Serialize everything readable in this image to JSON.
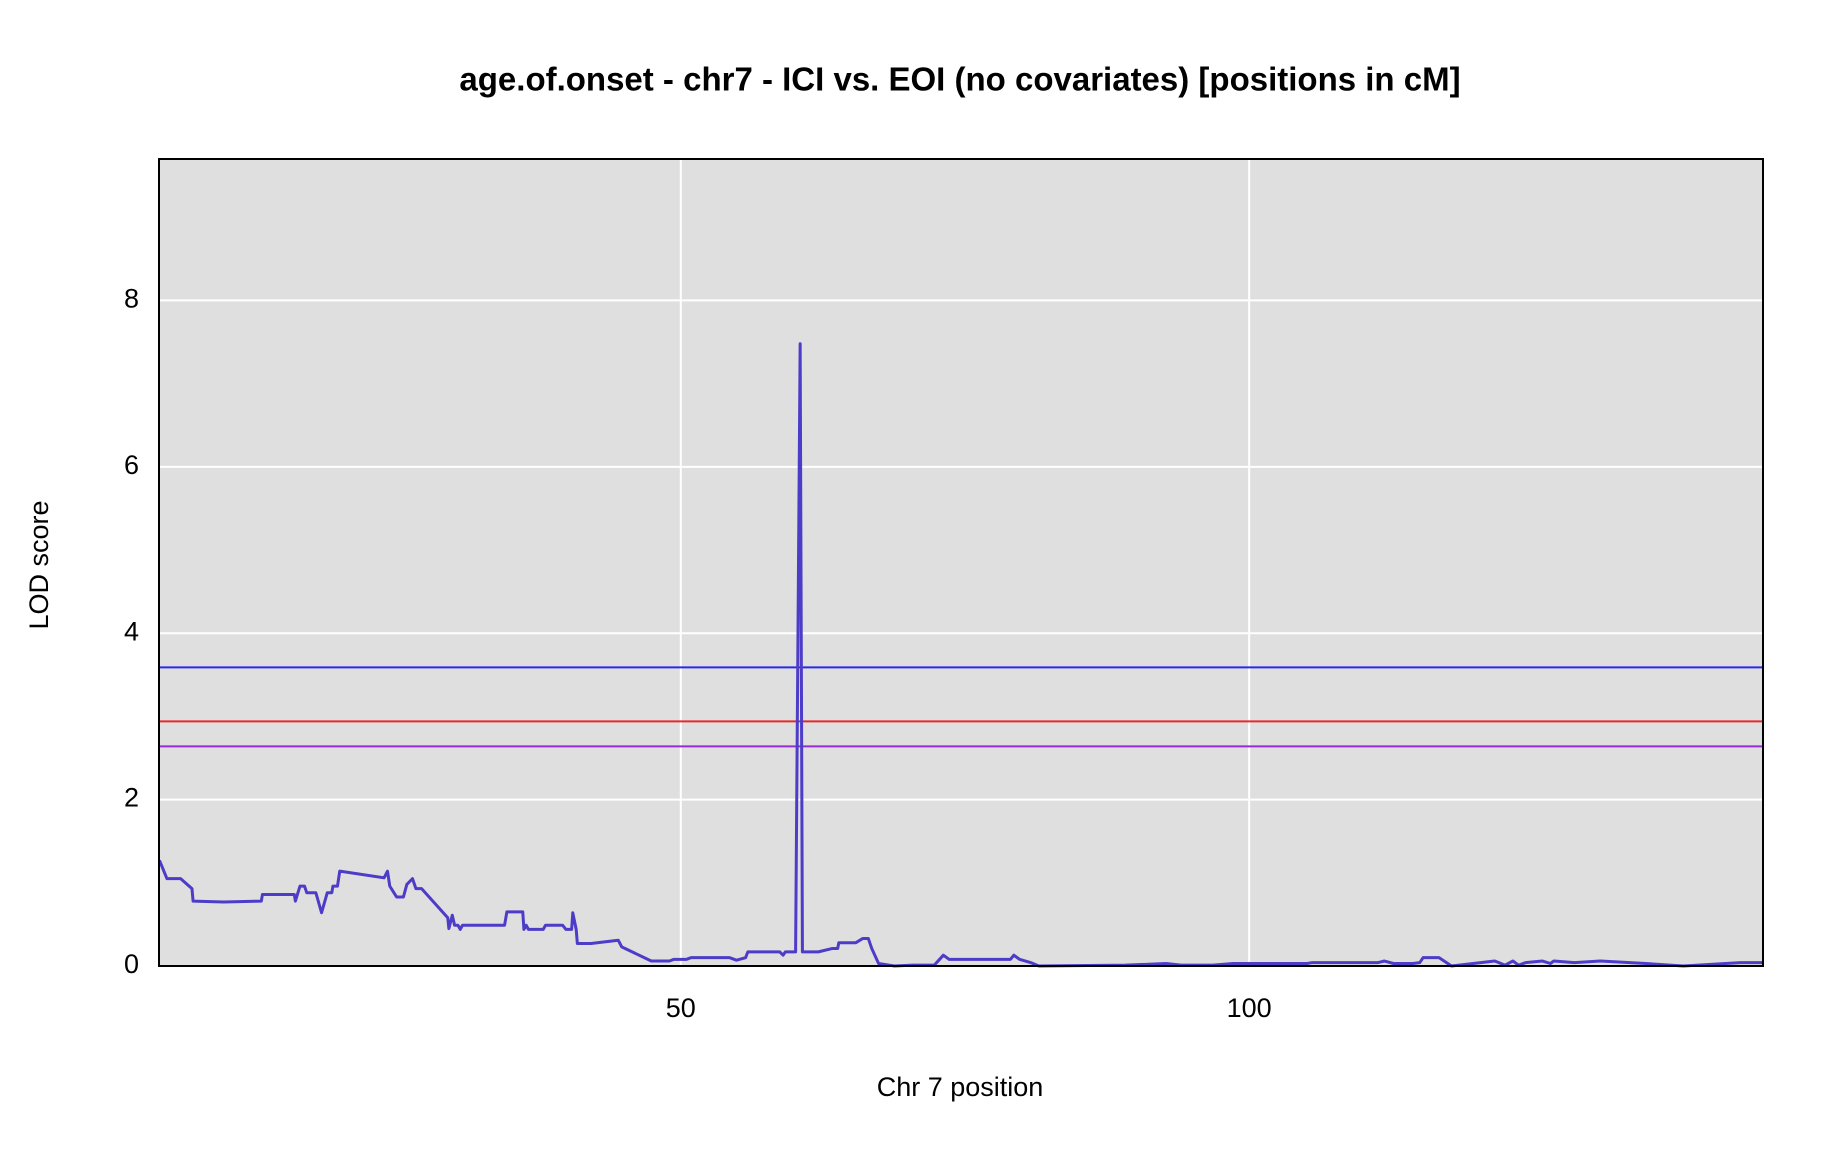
{
  "chart_data": {
    "type": "line",
    "title": "age.of.onset - chr7 - ICI vs. EOI (no covariates) [positions in cM]",
    "xlabel": "Chr 7 position",
    "ylabel": "LOD score",
    "xlim": [
      4.1,
      145.2
    ],
    "ylim": [
      0,
      9.7
    ],
    "xticks": [
      50,
      100
    ],
    "yticks": [
      0,
      2,
      4,
      6,
      8
    ],
    "grid": true,
    "thresholds": [
      {
        "value": 3.59,
        "color": "#2a2ae6"
      },
      {
        "value": 2.94,
        "color": "#e62a2a"
      },
      {
        "value": 2.64,
        "color": "#9a2ad6"
      }
    ],
    "series": [
      {
        "color": "#4d3cc8",
        "x": [
          4.14,
          4.8,
          6.0,
          7.0,
          7.1,
          9.8,
          13.1,
          13.2,
          16.0,
          16.1,
          16.5,
          16.9,
          17.1,
          17.9,
          18.4,
          18.9,
          19.3,
          19.4,
          19.8,
          20.0,
          23.9,
          24.2,
          24.4,
          25.0,
          25.6,
          25.9,
          26.4,
          26.7,
          27.2,
          29.5,
          29.6,
          29.9,
          30.1,
          30.4,
          30.6,
          30.8,
          34.5,
          34.7,
          36.1,
          36.2,
          36.4,
          36.6,
          37.9,
          38.1,
          39.6,
          39.9,
          40.4,
          40.5,
          40.8,
          40.9,
          42.1,
          44.5,
          44.8,
          47.4,
          49.0,
          49.4,
          50.5,
          50.9,
          54.3,
          54.9,
          55.7,
          55.9,
          58.7,
          59.0,
          59.2,
          60.1,
          60.5,
          60.7,
          62.1,
          63.3,
          63.8,
          63.9,
          65.4,
          66.0,
          66.5,
          66.8,
          67.4,
          68.8,
          70.4,
          72.3,
          72.7,
          73.1,
          73.6,
          79.0,
          79.3,
          79.8,
          80.8,
          81.5,
          89.1,
          92.7,
          94.0,
          96.8,
          98.6,
          105.1,
          105.5,
          111.3,
          111.9,
          112.7,
          114.4,
          115.0,
          115.3,
          116.7,
          117.8,
          121.6,
          122.5,
          123.2,
          123.7,
          124.3,
          125.8,
          126.5,
          126.8,
          128.6,
          130.9,
          134.9,
          138.2,
          143.2,
          145.2
        ],
        "values": [
          1.27,
          1.05,
          1.05,
          0.93,
          0.78,
          0.77,
          0.78,
          0.86,
          0.86,
          0.78,
          0.96,
          0.96,
          0.88,
          0.88,
          0.64,
          0.88,
          0.88,
          0.96,
          0.96,
          1.14,
          1.06,
          1.14,
          0.96,
          0.83,
          0.83,
          0.98,
          1.05,
          0.93,
          0.93,
          0.58,
          0.45,
          0.61,
          0.49,
          0.49,
          0.44,
          0.49,
          0.49,
          0.65,
          0.65,
          0.44,
          0.49,
          0.44,
          0.44,
          0.49,
          0.49,
          0.44,
          0.44,
          0.64,
          0.44,
          0.27,
          0.27,
          0.31,
          0.23,
          0.06,
          0.06,
          0.08,
          0.08,
          0.1,
          0.1,
          0.07,
          0.1,
          0.17,
          0.17,
          0.13,
          0.17,
          0.17,
          7.48,
          0.17,
          0.17,
          0.21,
          0.21,
          0.28,
          0.28,
          0.33,
          0.33,
          0.21,
          0.03,
          0,
          0.01,
          0.01,
          0.07,
          0.13,
          0.08,
          0.08,
          0.13,
          0.08,
          0.04,
          0,
          0.01,
          0.03,
          0.01,
          0.01,
          0.03,
          0.03,
          0.04,
          0.04,
          0.06,
          0.03,
          0.03,
          0.04,
          0.1,
          0.1,
          0,
          0.06,
          0.01,
          0.06,
          0.01,
          0.04,
          0.06,
          0.03,
          0.06,
          0.04,
          0.06,
          0.03,
          0,
          0.04,
          0.04
        ]
      }
    ]
  }
}
